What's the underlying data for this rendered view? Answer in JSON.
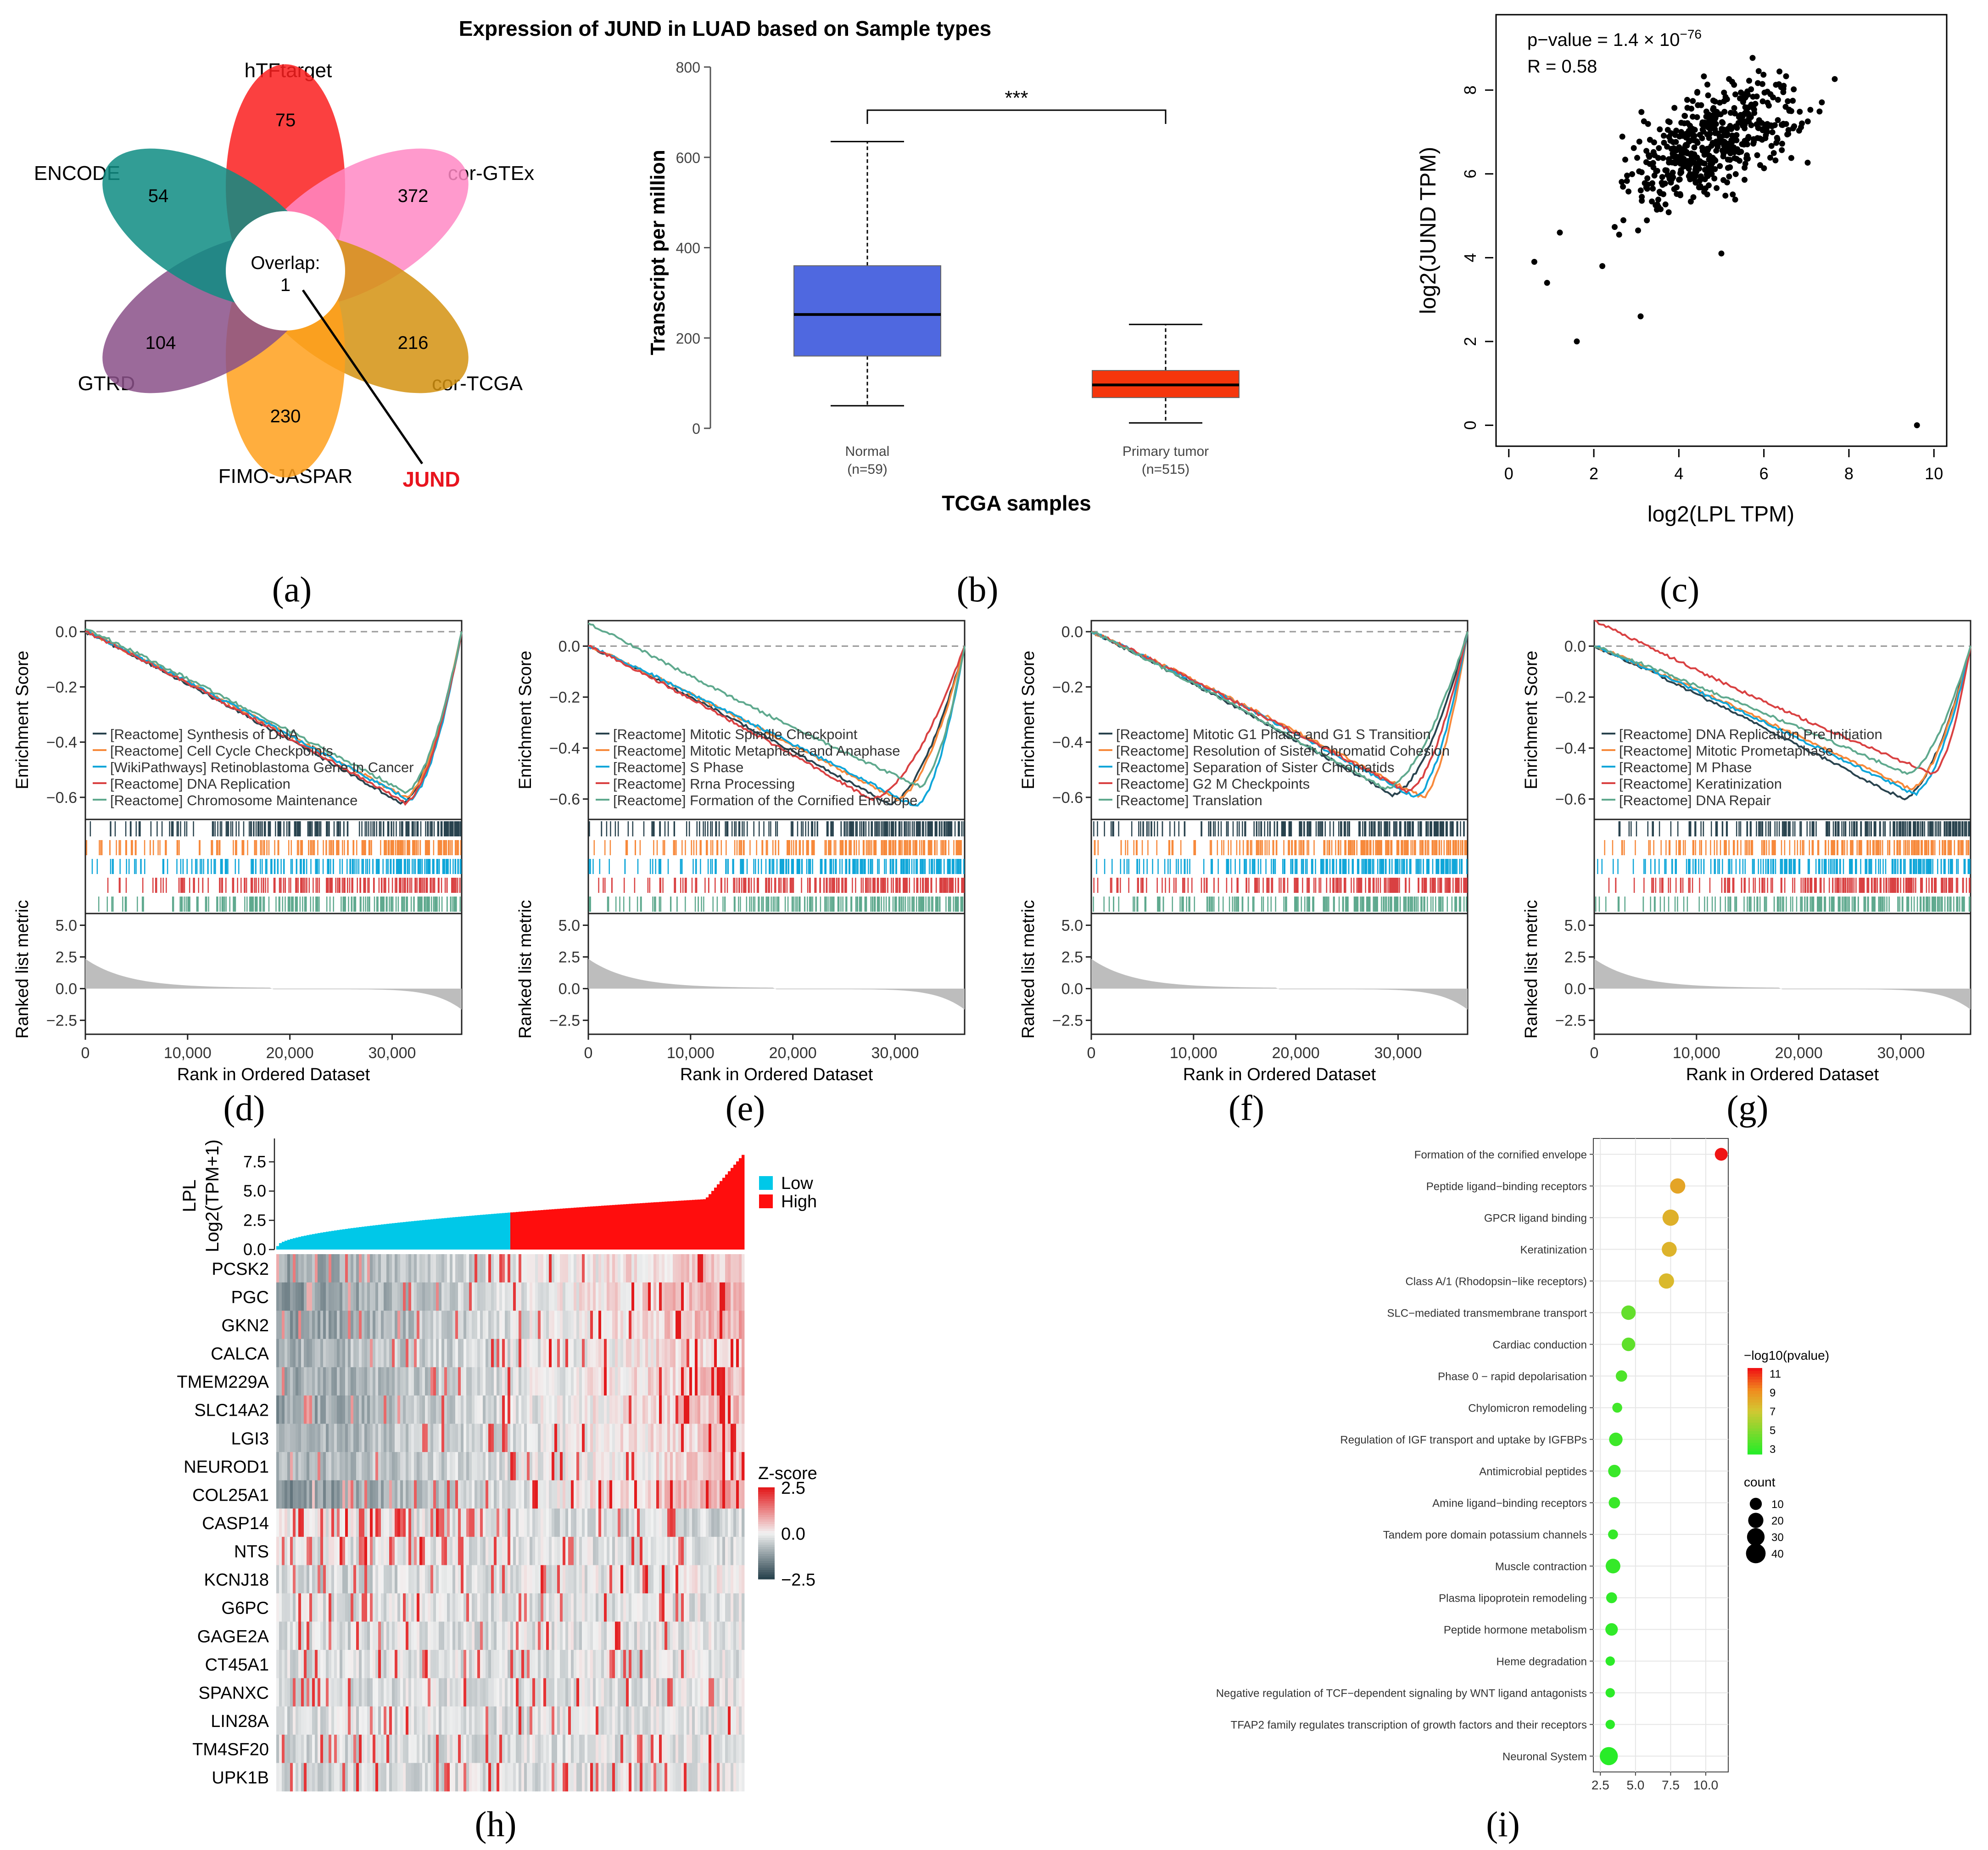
{
  "colors": {
    "gsea": [
      "#29434e",
      "#f7893b",
      "#0fa6d9",
      "#d94142",
      "#5fa98e"
    ],
    "normal_box": "#4f68e0",
    "tumor_box": "#f5360c",
    "low": "#00c8e8",
    "high": "#ff0d0d",
    "scatter": "#000000",
    "heat_neg": "#29434e",
    "heat_mid": "#f2f2f2",
    "heat_pos": "#e31a1c",
    "running_gray": "#bdbdbd"
  },
  "captions": [
    "(a)",
    "(b)",
    "(c)",
    "(d)",
    "(e)",
    "(f)",
    "(g)",
    "(h)",
    "(i)"
  ],
  "chart_data": [
    {
      "id": "a",
      "type": "venn-flower",
      "overlap_label": "Overlap:",
      "overlap_value": "1",
      "highlight_gene": "JUND",
      "sets": [
        {
          "name": "hTFtarget",
          "value": "75",
          "color": "#fa1e1e"
        },
        {
          "name": "cor-GTEx",
          "value": "372",
          "color": "#ff88c4"
        },
        {
          "name": "cor-TCGA",
          "value": "216",
          "color": "#d49210"
        },
        {
          "name": "FIMO-JASPAR",
          "value": "230",
          "color": "#ffa01c"
        },
        {
          "name": "GTRD",
          "value": "104",
          "color": "#8a5088"
        },
        {
          "name": "ENCODE",
          "value": "54",
          "color": "#0e8c83"
        }
      ]
    },
    {
      "id": "b",
      "type": "boxplot",
      "title": "Expression of JUND in LUAD based on Sample types",
      "xlabel": "TCGA samples",
      "ylabel": "Transcript per million",
      "ylim": [
        0,
        800
      ],
      "yticks": [
        "0",
        "200",
        "400",
        "600",
        "800"
      ],
      "significance": "***",
      "groups": [
        {
          "name": "Normal",
          "n": "(n=59)",
          "min": 50,
          "q1": 160,
          "median": 252,
          "q3": 360,
          "max": 635
        },
        {
          "name": "Primary tumor",
          "n": "(n=515)",
          "min": 12,
          "q1": 68,
          "median": 96,
          "q3": 128,
          "max": 230
        }
      ]
    },
    {
      "id": "c",
      "type": "scatter",
      "pvalue_label": "p−value = 1.4 × 10",
      "pvalue_exp": "−76",
      "r_label": "R = 0.58",
      "xlabel": "log2(LPL TPM)",
      "ylabel": "log2(JUND TPM)",
      "xlim": [
        -0.3,
        10.3
      ],
      "ylim": [
        -0.5,
        9.8
      ],
      "xticks": [
        "0",
        "2",
        "4",
        "6",
        "8",
        "10"
      ],
      "yticks": [
        "0",
        "2",
        "4",
        "6",
        "8"
      ],
      "trend": {
        "slope": 0.42,
        "intercept": 4.7,
        "spread": 0.85,
        "n": 515
      },
      "outliers": [
        [
          9.6,
          0.0
        ],
        [
          1.6,
          2.0
        ],
        [
          3.1,
          2.6
        ],
        [
          0.9,
          3.4
        ],
        [
          2.2,
          3.8
        ],
        [
          0.6,
          3.9
        ],
        [
          5.0,
          4.1
        ],
        [
          1.2,
          4.6
        ]
      ]
    },
    {
      "id": "d",
      "type": "gsea",
      "ylabel": "Enrichment Score",
      "metric_label": "Ranked list metric",
      "xlabel": "Rank in Ordered Dataset",
      "xticks": [
        "0",
        "10,000",
        "20,000",
        "30,000"
      ],
      "es_ticks": [
        "0.0",
        "−0.2",
        "−0.4",
        "−0.6"
      ],
      "metric_ticks": [
        "5.0",
        "2.5",
        "0.0",
        "−2.5"
      ],
      "es_range": [
        -0.68,
        0.04
      ],
      "n_genes": 36800,
      "series": [
        {
          "name": "[Reactome] Synthesis of DNA",
          "min_es": -0.62,
          "min_pos": 0.84,
          "start": 0.0
        },
        {
          "name": "[Reactome] Cell Cycle Checkpoints",
          "min_es": -0.6,
          "min_pos": 0.85,
          "start": 0.0
        },
        {
          "name": "[WikiPathways] Retinoblastoma Gene In Cancer",
          "min_es": -0.61,
          "min_pos": 0.86,
          "start": 0.0
        },
        {
          "name": "[Reactome] DNA Replication",
          "min_es": -0.62,
          "min_pos": 0.85,
          "start": 0.0
        },
        {
          "name": "[Reactome] Chromosome Maintenance",
          "min_es": -0.58,
          "min_pos": 0.85,
          "start": 0.01
        }
      ]
    },
    {
      "id": "e",
      "type": "gsea",
      "ylabel": "Enrichment Score",
      "metric_label": "Ranked list metric",
      "xlabel": "Rank in Ordered Dataset",
      "xticks": [
        "0",
        "10,000",
        "20,000",
        "30,000"
      ],
      "es_ticks": [
        "0.0",
        "−0.2",
        "−0.4",
        "−0.6"
      ],
      "metric_ticks": [
        "5.0",
        "2.5",
        "0.0",
        "−2.5"
      ],
      "es_range": [
        -0.68,
        0.1
      ],
      "n_genes": 36800,
      "series": [
        {
          "name": "[Reactome] Mitotic Spindle Checkpoint",
          "min_es": -0.62,
          "min_pos": 0.8,
          "start": 0.0
        },
        {
          "name": "[Reactome] Mitotic Metaphase and Anaphase",
          "min_es": -0.6,
          "min_pos": 0.82,
          "start": 0.0
        },
        {
          "name": "[Reactome] S Phase",
          "min_es": -0.63,
          "min_pos": 0.87,
          "start": 0.0
        },
        {
          "name": "[Reactome] Rrna Processing",
          "min_es": -0.6,
          "min_pos": 0.75,
          "start": 0.0
        },
        {
          "name": "[Reactome] Formation of the Cornified Envelope",
          "min_es": -0.55,
          "min_pos": 0.88,
          "start": 0.09
        }
      ]
    },
    {
      "id": "f",
      "type": "gsea",
      "ylabel": "Enrichment Score",
      "metric_label": "Ranked list metric",
      "xlabel": "Rank in Ordered Dataset",
      "xticks": [
        "0",
        "10,000",
        "20,000",
        "30,000"
      ],
      "es_ticks": [
        "0.0",
        "−0.2",
        "−0.4",
        "−0.6"
      ],
      "metric_ticks": [
        "5.0",
        "2.5",
        "0.0",
        "−2.5"
      ],
      "es_range": [
        -0.68,
        0.04
      ],
      "n_genes": 36800,
      "series": [
        {
          "name": "[Reactome] Mitotic G1 Phase and G1 S Transition",
          "min_es": -0.59,
          "min_pos": 0.8,
          "start": 0.0
        },
        {
          "name": "[Reactome] Resolution of Sister Chromatid Cohesion",
          "min_es": -0.6,
          "min_pos": 0.88,
          "start": 0.0
        },
        {
          "name": "[Reactome] Separation of Sister Chromatids",
          "min_es": -0.6,
          "min_pos": 0.86,
          "start": 0.0
        },
        {
          "name": "[Reactome] G2 M Checkpoints",
          "min_es": -0.58,
          "min_pos": 0.84,
          "start": 0.0
        },
        {
          "name": "[Reactome] Translation",
          "min_es": -0.57,
          "min_pos": 0.78,
          "start": 0.0
        }
      ]
    },
    {
      "id": "g",
      "type": "gsea",
      "ylabel": "Enrichment Score",
      "metric_label": "Ranked list metric",
      "xlabel": "Rank in Ordered Dataset",
      "xticks": [
        "0",
        "10,000",
        "20,000",
        "30,000"
      ],
      "es_ticks": [
        "0.0",
        "−0.2",
        "−0.4",
        "−0.6"
      ],
      "metric_ticks": [
        "5.0",
        "2.5",
        "0.0",
        "−2.5"
      ],
      "es_range": [
        -0.68,
        0.1
      ],
      "n_genes": 36800,
      "series": [
        {
          "name": "[Reactome] DNA Replication Pre Initiation",
          "min_es": -0.6,
          "min_pos": 0.82,
          "start": 0.0
        },
        {
          "name": "[Reactome] Mitotic Prometaphase",
          "min_es": -0.56,
          "min_pos": 0.84,
          "start": 0.0
        },
        {
          "name": "[Reactome] M Phase",
          "min_es": -0.58,
          "min_pos": 0.85,
          "start": 0.0
        },
        {
          "name": "[Reactome] Keratinization",
          "min_es": -0.5,
          "min_pos": 0.9,
          "start": 0.1
        },
        {
          "name": "[Reactome] DNA Repair",
          "min_es": -0.5,
          "min_pos": 0.83,
          "start": 0.0
        }
      ]
    },
    {
      "id": "h",
      "type": "heatmap",
      "ylabel_lines": [
        "LPL",
        "Log2(TPM+1)"
      ],
      "bar_ticks": [
        "7.5",
        "5.0",
        "2.5",
        "0.0"
      ],
      "bar_max": 9.5,
      "legend": [
        {
          "label": "Low"
        },
        {
          "label": "High"
        }
      ],
      "zscore_title": "Z-score",
      "zscore_ticks": [
        "2.5",
        "0.0",
        "−2.5"
      ],
      "genes": [
        "PCSK2",
        "PGC",
        "GKN2",
        "CALCA",
        "TMEM229A",
        "SLC14A2",
        "LGI3",
        "NEUROD1",
        "COL25A1",
        "CASP14",
        "NTS",
        "KCNJ18",
        "G6PC",
        "GAGE2A",
        "CT45A1",
        "SPANXC",
        "LIN28A",
        "TM4SF20",
        "UPK1B"
      ],
      "gene_trend": [
        0.55,
        0.7,
        0.65,
        0.45,
        0.55,
        0.6,
        0.5,
        0.45,
        0.75,
        -0.1,
        -0.05,
        0.15,
        0.05,
        0.05,
        0.05,
        0.05,
        0.05,
        0.05,
        0.05
      ]
    },
    {
      "id": "i",
      "type": "dotplot",
      "color_title": "−log10(pvalue)",
      "color_ticks": [
        "11",
        "9",
        "7",
        "5",
        "3"
      ],
      "size_title": "count",
      "size_ticks": [
        "10",
        "20",
        "30",
        "40"
      ],
      "xticks": [
        "2.5",
        "5.0",
        "7.5",
        "10.0"
      ],
      "xlim": [
        2.0,
        11.6
      ],
      "terms": [
        {
          "term": "Formation of the cornified envelope",
          "x": 11.1,
          "neglogp": 11.0,
          "count": 12
        },
        {
          "term": "Peptide ligand−binding receptors",
          "x": 8.0,
          "neglogp": 8.2,
          "count": 20
        },
        {
          "term": "GPCR ligand binding",
          "x": 7.5,
          "neglogp": 7.8,
          "count": 24
        },
        {
          "term": "Keratinization",
          "x": 7.4,
          "neglogp": 7.7,
          "count": 19
        },
        {
          "term": "Class A/1 (Rhodopsin−like receptors)",
          "x": 7.2,
          "neglogp": 7.5,
          "count": 20
        },
        {
          "term": "SLC−mediated transmembrane transport",
          "x": 4.5,
          "neglogp": 4.4,
          "count": 17
        },
        {
          "term": "Cardiac conduction",
          "x": 4.5,
          "neglogp": 4.3,
          "count": 14
        },
        {
          "term": "Phase 0 − rapid depolarisation",
          "x": 4.0,
          "neglogp": 3.9,
          "count": 8
        },
        {
          "term": "Chylomicron remodeling",
          "x": 3.7,
          "neglogp": 3.6,
          "count": 5
        },
        {
          "term": "Regulation of IGF transport and uptake by IGFBPs",
          "x": 3.6,
          "neglogp": 3.5,
          "count": 14
        },
        {
          "term": "Antimicrobial peptides",
          "x": 3.5,
          "neglogp": 3.4,
          "count": 11
        },
        {
          "term": "Amine ligand−binding receptors",
          "x": 3.5,
          "neglogp": 3.4,
          "count": 8
        },
        {
          "term": "Tandem pore domain potassium channels",
          "x": 3.4,
          "neglogp": 3.3,
          "count": 5
        },
        {
          "term": "Muscle contraction",
          "x": 3.4,
          "neglogp": 3.3,
          "count": 18
        },
        {
          "term": "Plasma lipoprotein remodeling",
          "x": 3.3,
          "neglogp": 3.2,
          "count": 7
        },
        {
          "term": "Peptide hormone metabolism",
          "x": 3.3,
          "neglogp": 3.2,
          "count": 11
        },
        {
          "term": "Heme degradation",
          "x": 3.2,
          "neglogp": 3.1,
          "count": 4
        },
        {
          "term": "Negative regulation of TCF−dependent signaling by WNT ligand antagonists",
          "x": 3.2,
          "neglogp": 3.1,
          "count": 4
        },
        {
          "term": "TFAP2 family regulates transcription of growth factors and their receptors",
          "x": 3.2,
          "neglogp": 3.1,
          "count": 4
        },
        {
          "term": "Neuronal System",
          "x": 3.1,
          "neglogp": 3.0,
          "count": 32
        }
      ]
    }
  ]
}
